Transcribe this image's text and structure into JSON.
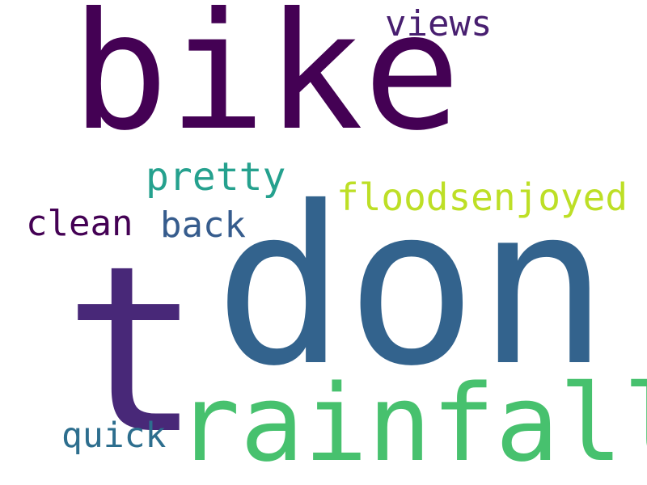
{
  "wordcloud": {
    "words": [
      {
        "text": "bike",
        "color": "#440154"
      },
      {
        "text": "t",
        "color": "#482878"
      },
      {
        "text": "don",
        "color": "#33638d"
      },
      {
        "text": "rainfall",
        "color": "#47c16e"
      },
      {
        "text": "views",
        "color": "#481f70"
      },
      {
        "text": "pretty",
        "color": "#25a18e"
      },
      {
        "text": "floodsenjoyed",
        "color": "#bddf26"
      },
      {
        "text": "clean",
        "color": "#440154"
      },
      {
        "text": "back",
        "color": "#365c8d"
      },
      {
        "text": "quick",
        "color": "#2d6e8e"
      }
    ]
  }
}
